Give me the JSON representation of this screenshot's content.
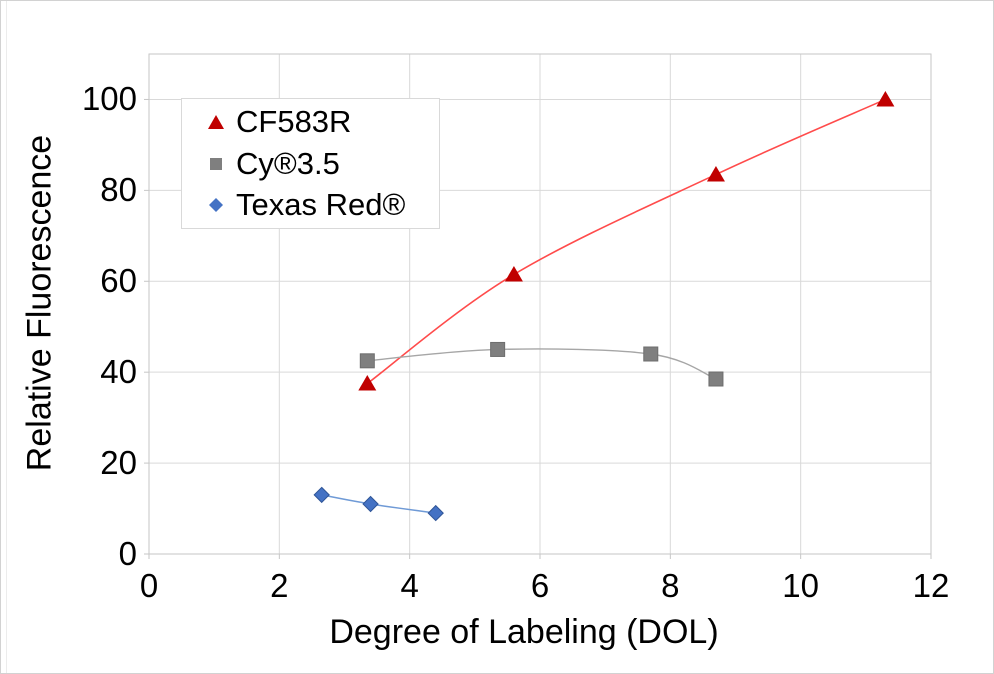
{
  "figure": {
    "background_color": "#ffffff",
    "border_color": "#d2d2d2"
  },
  "chart_data": {
    "type": "scatter",
    "title": "",
    "xlabel": "Degree of Labeling (DOL)",
    "ylabel": "Relative Fluorescence",
    "xlim": [
      0,
      12
    ],
    "ylim": [
      0,
      110
    ],
    "x_ticks": [
      0,
      2,
      4,
      6,
      8,
      10,
      12
    ],
    "y_ticks": [
      0,
      20,
      40,
      60,
      80,
      100
    ],
    "grid": true,
    "gridline_color": "#d9d9d9",
    "axis_color": "#c6c6c6",
    "tick_color": "#c6c6c6",
    "text_color": "#000000",
    "legend_position": "upper-left-inside",
    "series": [
      {
        "name": "CF583R",
        "marker": "triangle",
        "marker_color": "#c00000",
        "line_color": "#ff4b4b",
        "line_width": 1.6,
        "smooth": true,
        "points": [
          [
            3.35,
            37.5
          ],
          [
            5.6,
            61.5
          ],
          [
            8.7,
            83.5
          ],
          [
            11.3,
            100
          ]
        ]
      },
      {
        "name": "Cy®3.5",
        "marker": "square",
        "marker_color": "#7f7f7f",
        "line_color": "#a6a6a6",
        "line_width": 1.4,
        "smooth": true,
        "points": [
          [
            3.35,
            42.5
          ],
          [
            5.35,
            45
          ],
          [
            7.7,
            44
          ],
          [
            8.7,
            38.5
          ]
        ]
      },
      {
        "name": "Texas Red®",
        "marker": "diamond",
        "marker_color": "#4472c4",
        "line_color": "#6f9ad6",
        "line_width": 1.5,
        "smooth": true,
        "points": [
          [
            2.65,
            13
          ],
          [
            3.4,
            11
          ],
          [
            4.4,
            9
          ]
        ]
      }
    ]
  }
}
